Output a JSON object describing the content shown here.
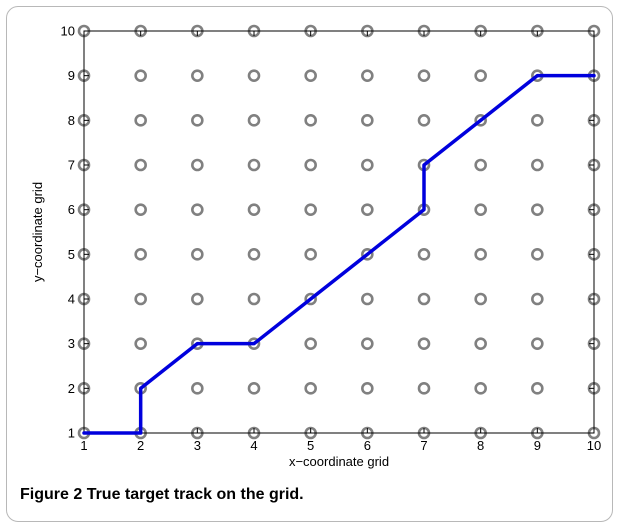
{
  "chart_data": {
    "type": "line",
    "xlabel": "x−coordinate grid",
    "ylabel": "y−coordinate grid",
    "xlim": [
      1,
      10
    ],
    "ylim": [
      1,
      10
    ],
    "x_ticks": [
      1,
      2,
      3,
      4,
      5,
      6,
      7,
      8,
      9,
      10
    ],
    "y_ticks": [
      1,
      2,
      3,
      4,
      5,
      6,
      7,
      8,
      9,
      10
    ],
    "grid_points": {
      "x": [
        1,
        2,
        3,
        4,
        5,
        6,
        7,
        8,
        9,
        10
      ],
      "y": [
        1,
        2,
        3,
        4,
        5,
        6,
        7,
        8,
        9,
        10
      ]
    },
    "series": [
      {
        "x": [
          1,
          2,
          2,
          3,
          4,
          5,
          6,
          7,
          7,
          8,
          9,
          10
        ],
        "y": [
          1,
          1,
          2,
          3,
          3,
          4,
          5,
          6,
          7,
          8,
          9,
          9
        ]
      }
    ],
    "colors": {
      "track": "#0000dd",
      "grid_marker": "#808080",
      "axis": "#000000"
    }
  },
  "caption": {
    "label": "Figure 2",
    "text": "True target track on the grid."
  }
}
